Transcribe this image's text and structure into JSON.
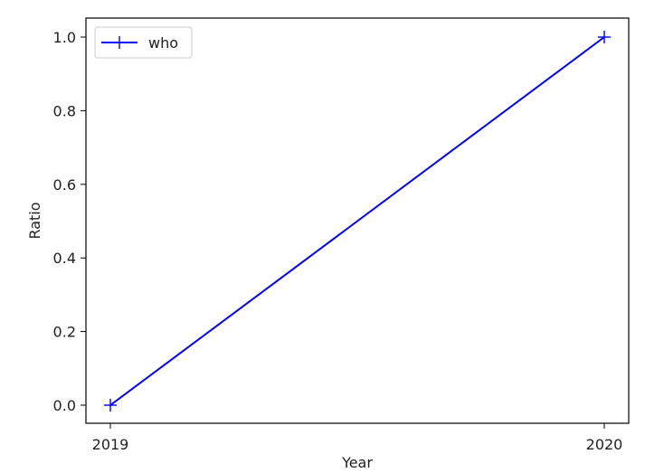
{
  "chart_data": {
    "type": "line",
    "x": [
      "2019",
      "2020"
    ],
    "xlabel": "Year",
    "ylabel": "Ratio",
    "ylim": [
      0.0,
      1.0
    ],
    "yticks": [
      "0.0",
      "0.2",
      "0.4",
      "0.6",
      "0.8",
      "1.0"
    ],
    "grid": false,
    "legend_position": "upper-left",
    "series": [
      {
        "name": "who",
        "values": [
          0.0,
          1.0
        ],
        "color": "#0000ff",
        "marker": "plus"
      }
    ]
  }
}
